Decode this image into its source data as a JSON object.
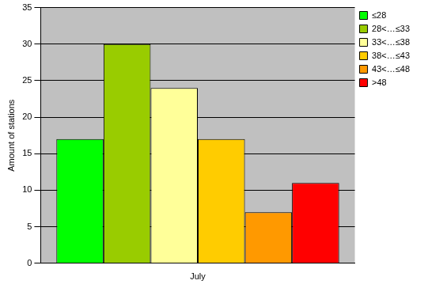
{
  "chart_data": {
    "type": "bar",
    "categories": [
      "July"
    ],
    "y_label": "Amount of stations",
    "series": [
      {
        "name": "≤28",
        "color": "#00ff00",
        "values": [
          17
        ]
      },
      {
        "name": "28<…≤33",
        "color": "#99cc00",
        "values": [
          30
        ]
      },
      {
        "name": "33<…≤38",
        "color": "#ffff99",
        "values": [
          24
        ]
      },
      {
        "name": "38<…≤43",
        "color": "#ffcc00",
        "values": [
          17
        ]
      },
      {
        "name": "43<…≤48",
        "color": "#ff9900",
        "values": [
          7
        ]
      },
      {
        "name": ">48",
        "color": "#ff0000",
        "values": [
          11
        ]
      }
    ],
    "ylim": [
      0,
      35
    ],
    "yticks": [
      0,
      5,
      10,
      15,
      20,
      25,
      30,
      35
    ],
    "grid": true,
    "legend": "top right"
  }
}
